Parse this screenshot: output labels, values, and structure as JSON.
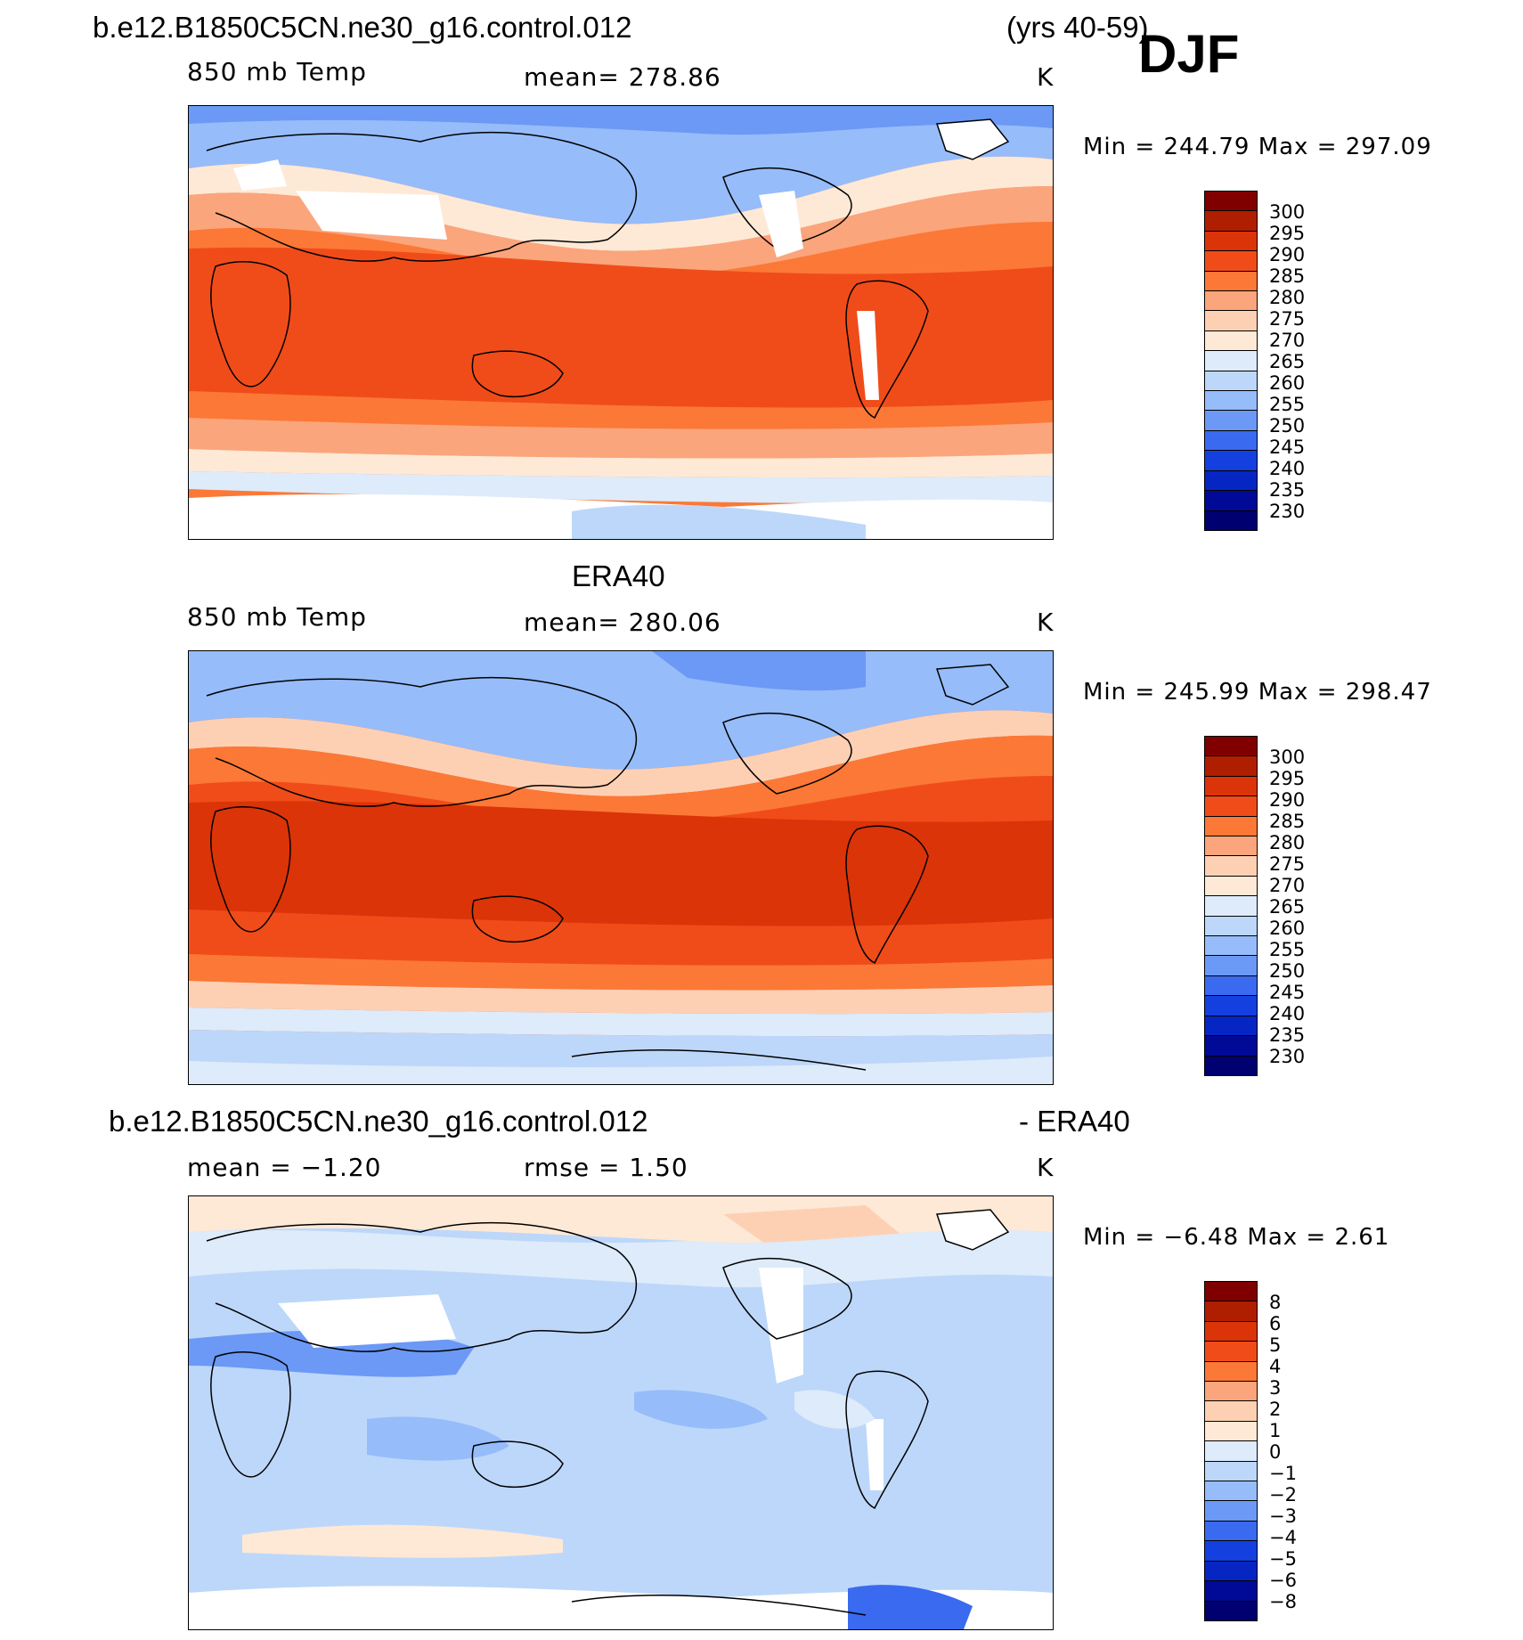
{
  "header": {
    "case_name": "b.e12.B1850C5CN.ne30_g16.control.012",
    "years": "(yrs 40-59)",
    "season": "DJF"
  },
  "colors": {
    "temp_scale": [
      "#800000",
      "#b01e00",
      "#db3408",
      "#f04c1a",
      "#fc7836",
      "#fba57c",
      "#fdd0b4",
      "#fde9d6",
      "#ddebfa",
      "#bdd7fa",
      "#96bcfa",
      "#6b99f5",
      "#3a6af0",
      "#1440e0",
      "#0626c4",
      "#000a96",
      "#000070"
    ],
    "diff_scale": [
      "#800000",
      "#b01e00",
      "#db3408",
      "#f04c1a",
      "#fc7836",
      "#fba57c",
      "#fdd0b4",
      "#fde9d6",
      "#ddebfa",
      "#bdd7fa",
      "#96bcfa",
      "#6b99f5",
      "#3a6af0",
      "#1440e0",
      "#0626c4",
      "#000a96",
      "#000070"
    ],
    "land_outline": "#000000"
  },
  "panels": [
    {
      "id": "model",
      "variable": "850 mb Temp",
      "stat_text": "mean=  278.86",
      "units": "K",
      "min_max": "Min  =  244.79  Max  =  297.09",
      "colorbar_labels": [
        "300",
        "295",
        "290",
        "285",
        "280",
        "275",
        "270",
        "265",
        "260",
        "255",
        "250",
        "245",
        "240",
        "235",
        "230"
      ]
    },
    {
      "id": "obs",
      "title": "ERA40",
      "variable": "850 mb Temp",
      "stat_text": "mean=  280.06",
      "units": "K",
      "min_max": "Min  =  245.99  Max  =  298.47",
      "colorbar_labels": [
        "300",
        "295",
        "290",
        "285",
        "280",
        "275",
        "270",
        "265",
        "260",
        "255",
        "250",
        "245",
        "240",
        "235",
        "230"
      ]
    },
    {
      "id": "diff",
      "title_left": "b.e12.B1850C5CN.ne30_g16.control.012",
      "title_right": "- ERA40",
      "mean_text": "mean  =    −1.20",
      "rmse_text": "rmse  =     1.50",
      "units": "K",
      "min_max": "Min  =    −6.48  Max  =      2.61",
      "colorbar_labels": [
        "8",
        "6",
        "5",
        "4",
        "3",
        "2",
        "1",
        "0",
        "−1",
        "−2",
        "−3",
        "−4",
        "−5",
        "−6",
        "−8"
      ]
    }
  ]
}
